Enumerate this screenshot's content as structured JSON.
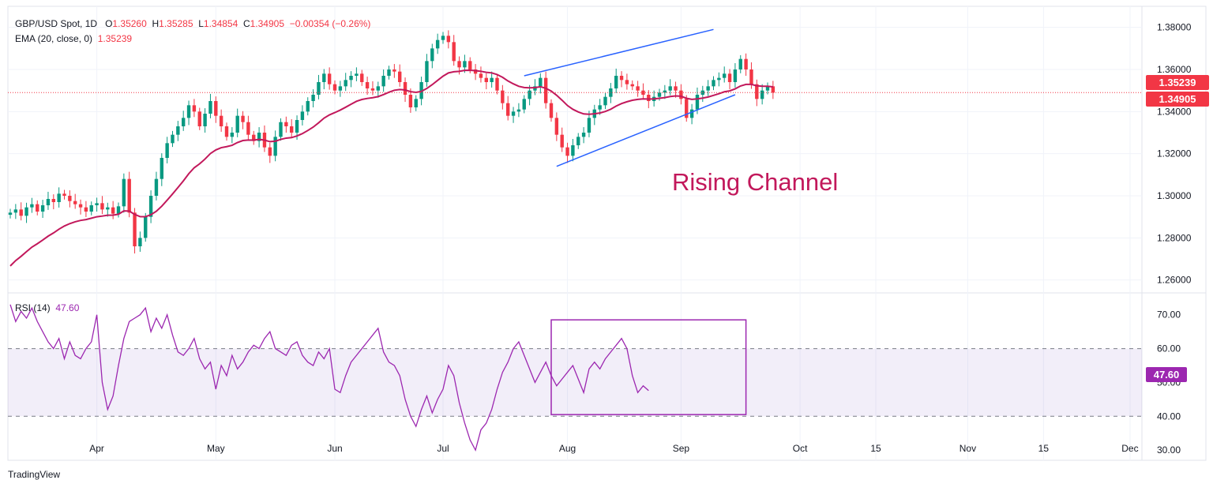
{
  "legend": {
    "symbol": "GBP/USD Spot, 1D",
    "o_label": "O",
    "o_value": "1.35260",
    "h_label": "H",
    "h_value": "1.35285",
    "l_label": "L",
    "l_value": "1.34854",
    "c_label": "C",
    "c_value": "1.34905",
    "change": "−0.00354 (−0.26%)",
    "ema_label": "EMA (20, close, 0)",
    "ema_value": "1.35239",
    "rsi_label": "RSI (14)",
    "rsi_value": "47.60"
  },
  "tags": {
    "ema": "1.35239",
    "close": "1.34905",
    "rsi": "47.60"
  },
  "annotation": "Rising Channel",
  "footer": "TradingView",
  "colors": {
    "up": "#089981",
    "down": "#f23645",
    "ema": "#c2185b",
    "rsi": "#9c27b0",
    "channel": "#2962ff",
    "grid": "#f0f3fa"
  },
  "chart_data": [
    {
      "type": "candlestick",
      "title": "GBP/USD Spot, 1D",
      "ylim": [
        1.255,
        1.39
      ],
      "y_ticks": [
        "1.38000",
        "1.36000",
        "1.34000",
        "1.32000",
        "1.30000",
        "1.28000",
        "1.26000"
      ],
      "y_tick_values": [
        1.38,
        1.36,
        1.34,
        1.32,
        1.3,
        1.28,
        1.26
      ],
      "x_tick_labels": [
        "Apr",
        "May",
        "Jun",
        "Jul",
        "Aug",
        "Sep",
        "Oct",
        "15",
        "Nov",
        "15",
        "Dec"
      ],
      "x_tick_index": [
        16,
        38,
        60,
        80,
        103,
        124,
        146,
        160,
        177,
        191,
        207
      ],
      "closes": [
        1.292,
        1.2935,
        1.2905,
        1.2945,
        1.296,
        1.2925,
        1.2955,
        1.2985,
        1.297,
        1.301,
        1.3,
        1.2975,
        1.296,
        1.2945,
        1.2925,
        1.2955,
        1.2965,
        1.2935,
        1.2945,
        1.2915,
        1.295,
        1.308,
        1.292,
        1.276,
        1.28,
        1.29,
        1.3,
        1.308,
        1.318,
        1.325,
        1.329,
        1.333,
        1.337,
        1.343,
        1.34,
        1.333,
        1.339,
        1.345,
        1.338,
        1.333,
        1.328,
        1.33,
        1.338,
        1.335,
        1.329,
        1.326,
        1.33,
        1.323,
        1.319,
        1.328,
        1.335,
        1.333,
        1.33,
        1.336,
        1.34,
        1.345,
        1.348,
        1.354,
        1.358,
        1.353,
        1.35,
        1.352,
        1.355,
        1.357,
        1.358,
        1.354,
        1.351,
        1.35,
        1.352,
        1.357,
        1.36,
        1.359,
        1.354,
        1.348,
        1.342,
        1.346,
        1.354,
        1.364,
        1.37,
        1.374,
        1.376,
        1.373,
        1.364,
        1.361,
        1.364,
        1.36,
        1.358,
        1.356,
        1.354,
        1.356,
        1.35,
        1.344,
        1.338,
        1.34,
        1.341,
        1.346,
        1.35,
        1.352,
        1.356,
        1.344,
        1.337,
        1.329,
        1.323,
        1.319,
        1.324,
        1.328,
        1.33,
        1.337,
        1.341,
        1.343,
        1.347,
        1.351,
        1.357,
        1.355,
        1.353,
        1.352,
        1.35,
        1.348,
        1.345,
        1.347,
        1.349,
        1.35,
        1.352,
        1.35,
        1.346,
        1.337,
        1.341,
        1.348,
        1.35,
        1.352,
        1.355,
        1.356,
        1.358,
        1.354,
        1.36,
        1.365,
        1.36,
        1.353,
        1.346,
        1.35,
        1.352,
        1.349
      ],
      "ema_value_last": 1.35239,
      "close_last": 1.34905,
      "channel_upper": [
        [
          95,
          1.357
        ],
        [
          130,
          1.379
        ]
      ],
      "channel_lower": [
        [
          101,
          1.314
        ],
        [
          134,
          1.348
        ]
      ]
    },
    {
      "type": "line",
      "title": "RSI (14)",
      "ylim": [
        27,
        76
      ],
      "y_ticks": [
        "70.00",
        "60.00",
        "50.00",
        "40.00",
        "30.00"
      ],
      "y_tick_values": [
        70,
        60,
        50,
        40,
        30
      ],
      "band": [
        40,
        60
      ],
      "values": [
        73,
        68,
        71,
        69,
        72,
        68,
        65,
        62,
        60,
        63,
        57,
        62,
        58,
        57,
        60,
        62,
        70,
        50,
        42,
        46,
        55,
        63,
        68,
        69,
        70,
        72,
        65,
        69,
        66,
        70,
        64,
        59,
        58,
        60,
        63,
        57,
        54,
        56,
        48,
        55,
        52,
        58,
        54,
        56,
        59,
        61,
        60,
        63,
        65,
        60,
        59,
        58,
        61,
        62,
        58,
        56,
        55,
        59,
        57,
        60,
        48,
        47,
        52,
        56,
        58,
        60,
        62,
        64,
        66,
        59,
        56,
        55,
        52,
        45,
        40,
        37,
        42,
        46,
        41,
        45,
        48,
        55,
        52,
        44,
        38,
        33,
        30,
        36,
        38,
        42,
        48,
        53,
        56,
        60,
        62,
        58,
        54,
        50,
        53,
        56,
        52,
        49,
        51,
        53,
        55,
        51,
        47,
        54,
        56,
        54,
        57,
        59,
        61,
        63,
        60,
        52,
        47,
        49,
        47.6
      ],
      "box": {
        "x_from_index": 100,
        "x_to_index": 136,
        "y_from": 40.5,
        "y_to": 68.5
      },
      "last_value": 47.6
    }
  ]
}
